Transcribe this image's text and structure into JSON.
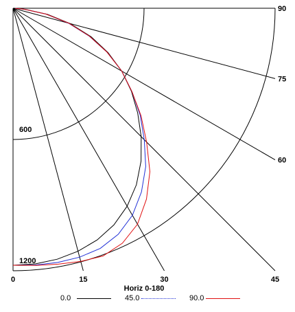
{
  "chart_data": {
    "type": "line",
    "projection": "polar-quadrant",
    "title": "",
    "xlabel": "Horiz 0-180",
    "ylabel": "",
    "radial_max": 1200,
    "radial_rings": [
      600,
      1200
    ],
    "radial_ring_labels": [
      "600",
      "1200"
    ],
    "angle_ticks_bottom": [
      0,
      15,
      30,
      45
    ],
    "angle_tick_labels_bottom": [
      "0",
      "15",
      "30",
      "45"
    ],
    "angle_ticks_right": [
      60,
      75,
      90
    ],
    "angle_tick_labels_right": [
      "60",
      "75",
      "90"
    ],
    "grid": true,
    "legend_position": "bottom",
    "series": [
      {
        "name": "0.0",
        "color": "#000000",
        "angle": [
          0,
          5,
          10,
          15,
          20,
          25,
          30,
          35,
          40,
          45,
          50,
          55,
          60,
          65,
          70,
          75,
          80,
          85,
          88
        ],
        "radius": [
          1175,
          1173,
          1165,
          1150,
          1127,
          1093,
          1045,
          985,
          912,
          830,
          745,
          662,
          575,
          480,
          380,
          270,
          160,
          55,
          10
        ]
      },
      {
        "name": "45.0",
        "color": "#1f2fd6",
        "angle": [
          0,
          5,
          10,
          15,
          20,
          25,
          30,
          35,
          40,
          45,
          50,
          55,
          60,
          65,
          70,
          75,
          80,
          85,
          88
        ],
        "radius": [
          1175,
          1178,
          1180,
          1178,
          1168,
          1140,
          1093,
          1025,
          945,
          850,
          760,
          665,
          575,
          475,
          370,
          262,
          153,
          50,
          10
        ]
      },
      {
        "name": "90.0",
        "color": "#e01010",
        "angle": [
          0,
          5,
          10,
          15,
          20,
          25,
          30,
          35,
          40,
          45,
          50,
          55,
          60,
          65,
          70,
          75,
          80,
          85,
          88
        ],
        "radius": [
          1175,
          1180,
          1188,
          1198,
          1205,
          1185,
          1140,
          1065,
          975,
          865,
          765,
          665,
          575,
          475,
          372,
          265,
          153,
          50,
          10
        ]
      }
    ]
  }
}
